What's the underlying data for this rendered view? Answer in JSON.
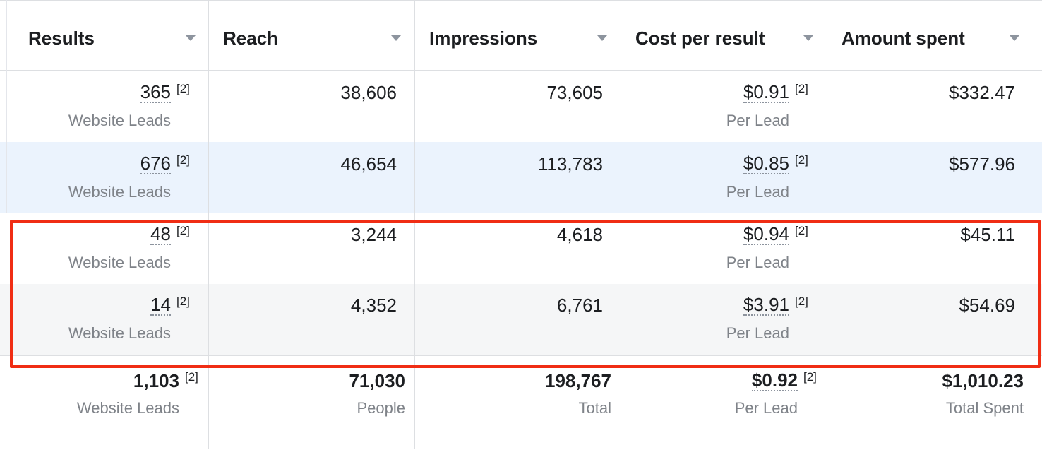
{
  "columns": [
    {
      "label": "Results"
    },
    {
      "label": "Reach"
    },
    {
      "label": "Impressions"
    },
    {
      "label": "Cost per result"
    },
    {
      "label": "Amount spent"
    }
  ],
  "footnote_marker": "[2]",
  "rows": [
    {
      "results": "365",
      "results_unit": "Website Leads",
      "reach": "38,606",
      "impressions": "73,605",
      "cost": "$0.91",
      "cost_unit": "Per Lead",
      "spent": "$332.47"
    },
    {
      "results": "676",
      "results_unit": "Website Leads",
      "reach": "46,654",
      "impressions": "113,783",
      "cost": "$0.85",
      "cost_unit": "Per Lead",
      "spent": "$577.96"
    },
    {
      "results": "48",
      "results_unit": "Website Leads",
      "reach": "3,244",
      "impressions": "4,618",
      "cost": "$0.94",
      "cost_unit": "Per Lead",
      "spent": "$45.11"
    },
    {
      "results": "14",
      "results_unit": "Website Leads",
      "reach": "4,352",
      "impressions": "6,761",
      "cost": "$3.91",
      "cost_unit": "Per Lead",
      "spent": "$54.69"
    }
  ],
  "totals": {
    "results": "1,103",
    "results_unit": "Website Leads",
    "reach": "71,030",
    "reach_unit": "People",
    "impressions": "198,767",
    "impressions_unit": "Total",
    "cost": "$0.92",
    "cost_unit": "Per Lead",
    "spent": "$1,010.23",
    "spent_unit": "Total Spent"
  },
  "colors": {
    "highlight": "#f02d14",
    "selected_row": "#ebf3fd",
    "alt_row": "#f5f6f7"
  }
}
